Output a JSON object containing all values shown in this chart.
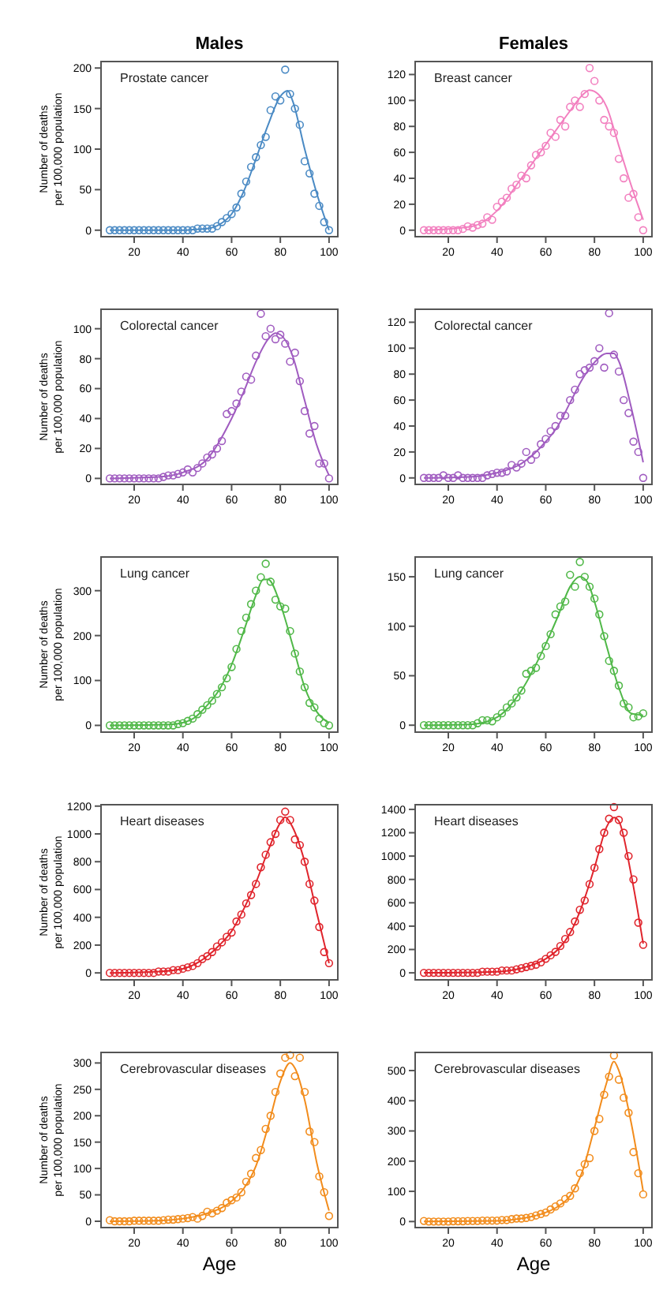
{
  "chart_data": [
    {
      "type": "scatter",
      "title": "Males",
      "subtitle": "Prostate cancer",
      "ylabel": "Number of deaths\nper 100,000 population",
      "xlim": [
        6.4,
        103.6
      ],
      "xticks": [
        20,
        40,
        60,
        80,
        100
      ],
      "ylim": [
        -8,
        208
      ],
      "yticks": [
        0,
        50,
        100,
        150,
        200
      ],
      "x": [
        10,
        12,
        14,
        16,
        18,
        20,
        22,
        24,
        26,
        28,
        30,
        32,
        34,
        36,
        38,
        40,
        42,
        44,
        46,
        48,
        50,
        52,
        54,
        56,
        58,
        60,
        62,
        64,
        66,
        68,
        70,
        72,
        74,
        76,
        78,
        80,
        82,
        84,
        86,
        88,
        90,
        92,
        94,
        96,
        98,
        100
      ],
      "series": [
        {
          "color": "#4a8ac4",
          "marker": "circle",
          "values": [
            0,
            0,
            0,
            0,
            0,
            0,
            0,
            0,
            0,
            0,
            0,
            0,
            0,
            0,
            0,
            0,
            0,
            0,
            2,
            2,
            2,
            2,
            5,
            10,
            15,
            20,
            28,
            45,
            60,
            78,
            90,
            105,
            115,
            148,
            165,
            160,
            198,
            168,
            150,
            130,
            85,
            70,
            45,
            30,
            10,
            0
          ]
        },
        {
          "type": "line",
          "marker": "none",
          "color": "#4a8ac4",
          "x": [
            10,
            20,
            30,
            40,
            45,
            50,
            55,
            60,
            65,
            70,
            75,
            80,
            83,
            85,
            90,
            95,
            100
          ],
          "values": [
            0,
            0,
            0,
            0,
            1,
            2,
            7,
            20,
            48,
            88,
            130,
            165,
            172,
            160,
            100,
            45,
            0
          ]
        }
      ]
    },
    {
      "type": "scatter",
      "title": "Females",
      "subtitle": "Breast cancer",
      "xlim": [
        6.4,
        103.6
      ],
      "xticks": [
        20,
        40,
        60,
        80,
        100
      ],
      "ylim": [
        -5,
        130
      ],
      "yticks": [
        0,
        20,
        40,
        60,
        80,
        100,
        120
      ],
      "x": [
        10,
        12,
        14,
        16,
        18,
        20,
        22,
        24,
        26,
        28,
        30,
        32,
        34,
        36,
        38,
        40,
        42,
        44,
        46,
        48,
        50,
        52,
        54,
        56,
        58,
        60,
        62,
        64,
        66,
        68,
        70,
        72,
        74,
        76,
        78,
        80,
        82,
        84,
        86,
        88,
        90,
        92,
        94,
        96,
        98,
        100
      ],
      "series": [
        {
          "color": "#f27fbf",
          "marker": "circle",
          "values": [
            0,
            0,
            0,
            0,
            0,
            0,
            0,
            0,
            1,
            3,
            2,
            4,
            5,
            10,
            8,
            18,
            22,
            25,
            32,
            35,
            42,
            40,
            50,
            58,
            60,
            65,
            75,
            72,
            85,
            80,
            95,
            100,
            95,
            105,
            125,
            115,
            100,
            85,
            80,
            75,
            55,
            40,
            25,
            28,
            10,
            0
          ]
        },
        {
          "type": "line",
          "marker": "none",
          "color": "#f27fbf",
          "x": [
            10,
            20,
            30,
            40,
            50,
            60,
            70,
            75,
            78,
            80,
            85,
            90,
            95,
            100
          ],
          "values": [
            0,
            1,
            3,
            15,
            40,
            66,
            92,
            104,
            108,
            107,
            95,
            65,
            35,
            8
          ]
        }
      ]
    },
    {
      "type": "scatter",
      "subtitle": "Colorectal cancer",
      "ylabel": "Number of deaths\nper 100,000 population",
      "xlim": [
        6.4,
        103.6
      ],
      "xticks": [
        20,
        40,
        60,
        80,
        100
      ],
      "ylim": [
        -4,
        113
      ],
      "yticks": [
        0,
        20,
        40,
        60,
        80,
        100
      ],
      "x": [
        10,
        12,
        14,
        16,
        18,
        20,
        22,
        24,
        26,
        28,
        30,
        32,
        34,
        36,
        38,
        40,
        42,
        44,
        46,
        48,
        50,
        52,
        54,
        56,
        58,
        60,
        62,
        64,
        66,
        68,
        70,
        72,
        74,
        76,
        78,
        80,
        82,
        84,
        86,
        88,
        90,
        92,
        94,
        96,
        98,
        100
      ],
      "series": [
        {
          "color": "#a05cc0",
          "marker": "circle",
          "values": [
            0,
            0,
            0,
            0,
            0,
            0,
            0,
            0,
            0,
            0,
            0,
            1,
            2,
            2,
            3,
            4,
            6,
            4,
            7,
            10,
            14,
            16,
            20,
            25,
            43,
            45,
            50,
            58,
            68,
            66,
            82,
            110,
            95,
            100,
            93,
            96,
            90,
            78,
            84,
            65,
            45,
            30,
            35,
            10,
            10,
            0
          ]
        },
        {
          "type": "line",
          "marker": "none",
          "color": "#a05cc0",
          "x": [
            10,
            30,
            40,
            50,
            60,
            65,
            70,
            75,
            78,
            80,
            85,
            90,
            95,
            100
          ],
          "values": [
            0,
            1,
            4,
            13,
            40,
            58,
            78,
            93,
            97,
            96,
            82,
            52,
            22,
            2
          ]
        }
      ]
    },
    {
      "type": "scatter",
      "subtitle": "Colorectal cancer",
      "xlim": [
        6.4,
        103.6
      ],
      "xticks": [
        20,
        40,
        60,
        80,
        100
      ],
      "ylim": [
        -5,
        130
      ],
      "yticks": [
        0,
        20,
        40,
        60,
        80,
        100,
        120
      ],
      "x": [
        10,
        12,
        14,
        16,
        18,
        20,
        22,
        24,
        26,
        28,
        30,
        32,
        34,
        36,
        38,
        40,
        42,
        44,
        46,
        48,
        50,
        52,
        54,
        56,
        58,
        60,
        62,
        64,
        66,
        68,
        70,
        72,
        74,
        76,
        78,
        80,
        82,
        84,
        86,
        88,
        90,
        92,
        94,
        96,
        98,
        100
      ],
      "series": [
        {
          "color": "#a05cc0",
          "marker": "circle",
          "values": [
            0,
            0,
            0,
            0,
            2,
            0,
            0,
            2,
            0,
            0,
            0,
            0,
            0,
            2,
            3,
            4,
            4,
            5,
            10,
            8,
            11,
            20,
            14,
            18,
            26,
            30,
            36,
            40,
            48,
            48,
            60,
            68,
            80,
            83,
            85,
            90,
            100,
            85,
            127,
            95,
            82,
            60,
            50,
            28,
            20,
            0
          ]
        },
        {
          "type": "line",
          "marker": "none",
          "color": "#a05cc0",
          "x": [
            10,
            30,
            40,
            50,
            60,
            65,
            70,
            75,
            80,
            85,
            88,
            90,
            95,
            100
          ],
          "values": [
            0,
            1,
            4,
            11,
            28,
            40,
            58,
            76,
            89,
            96,
            96,
            90,
            55,
            12
          ]
        }
      ]
    },
    {
      "type": "scatter",
      "subtitle": "Lung cancer",
      "ylabel": "Number of deaths\nper 100,000 population",
      "xlim": [
        6.4,
        103.6
      ],
      "xticks": [
        20,
        40,
        60,
        80,
        100
      ],
      "ylim": [
        -15,
        375
      ],
      "yticks": [
        0,
        100,
        200,
        300
      ],
      "x": [
        10,
        12,
        14,
        16,
        18,
        20,
        22,
        24,
        26,
        28,
        30,
        32,
        34,
        36,
        38,
        40,
        42,
        44,
        46,
        48,
        50,
        52,
        54,
        56,
        58,
        60,
        62,
        64,
        66,
        68,
        70,
        72,
        74,
        76,
        78,
        80,
        82,
        84,
        86,
        88,
        90,
        92,
        94,
        96,
        98,
        100
      ],
      "series": [
        {
          "color": "#50b848",
          "marker": "circle",
          "values": [
            0,
            0,
            0,
            0,
            0,
            0,
            0,
            0,
            0,
            0,
            0,
            0,
            0,
            0,
            3,
            5,
            10,
            15,
            25,
            35,
            45,
            55,
            70,
            85,
            105,
            130,
            170,
            210,
            240,
            270,
            300,
            330,
            360,
            320,
            280,
            265,
            260,
            210,
            160,
            120,
            85,
            50,
            40,
            15,
            5,
            0
          ]
        },
        {
          "type": "line",
          "marker": "none",
          "color": "#50b848",
          "x": [
            10,
            35,
            40,
            45,
            50,
            55,
            60,
            65,
            70,
            73,
            75,
            80,
            85,
            90,
            95,
            100
          ],
          "values": [
            0,
            2,
            6,
            18,
            45,
            80,
            135,
            210,
            290,
            325,
            325,
            270,
            180,
            85,
            30,
            5
          ]
        }
      ]
    },
    {
      "type": "scatter",
      "subtitle": "Lung cancer",
      "xlim": [
        6.4,
        103.6
      ],
      "xticks": [
        20,
        40,
        60,
        80,
        100
      ],
      "ylim": [
        -7,
        170
      ],
      "yticks": [
        0,
        50,
        100,
        150
      ],
      "x": [
        10,
        12,
        14,
        16,
        18,
        20,
        22,
        24,
        26,
        28,
        30,
        32,
        34,
        36,
        38,
        40,
        42,
        44,
        46,
        48,
        50,
        52,
        54,
        56,
        58,
        60,
        62,
        64,
        66,
        68,
        70,
        72,
        74,
        76,
        78,
        80,
        82,
        84,
        86,
        88,
        90,
        92,
        94,
        96,
        98,
        100
      ],
      "series": [
        {
          "color": "#50b848",
          "marker": "circle",
          "values": [
            0,
            0,
            0,
            0,
            0,
            0,
            0,
            0,
            0,
            0,
            0,
            2,
            5,
            5,
            4,
            8,
            12,
            18,
            22,
            28,
            35,
            52,
            55,
            58,
            70,
            80,
            92,
            112,
            120,
            125,
            152,
            140,
            165,
            150,
            140,
            128,
            112,
            90,
            65,
            55,
            40,
            22,
            18,
            8,
            9,
            12
          ]
        },
        {
          "type": "line",
          "marker": "none",
          "color": "#50b848",
          "x": [
            10,
            30,
            40,
            50,
            60,
            65,
            70,
            74,
            77,
            80,
            85,
            90,
            95,
            100
          ],
          "values": [
            0,
            1,
            8,
            35,
            82,
            110,
            140,
            150,
            145,
            125,
            80,
            38,
            12,
            10
          ]
        }
      ]
    },
    {
      "type": "scatter",
      "subtitle": "Heart diseases",
      "ylabel": "Number of deaths\nper 100,000 population",
      "xlim": [
        6.4,
        103.6
      ],
      "xticks": [
        20,
        40,
        60,
        80,
        100
      ],
      "ylim": [
        -50,
        1210
      ],
      "yticks": [
        0,
        200,
        400,
        600,
        800,
        1000,
        1200
      ],
      "x": [
        10,
        12,
        14,
        16,
        18,
        20,
        22,
        24,
        26,
        28,
        30,
        32,
        34,
        36,
        38,
        40,
        42,
        44,
        46,
        48,
        50,
        52,
        54,
        56,
        58,
        60,
        62,
        64,
        66,
        68,
        70,
        72,
        74,
        76,
        78,
        80,
        82,
        84,
        86,
        88,
        90,
        92,
        94,
        96,
        98,
        100
      ],
      "series": [
        {
          "color": "#e0242c",
          "marker": "circle",
          "values": [
            0,
            0,
            0,
            0,
            0,
            0,
            0,
            0,
            0,
            0,
            10,
            10,
            10,
            20,
            20,
            30,
            40,
            50,
            70,
            100,
            120,
            150,
            190,
            220,
            260,
            290,
            370,
            420,
            500,
            560,
            640,
            760,
            850,
            940,
            1000,
            1100,
            1160,
            1100,
            960,
            920,
            800,
            640,
            520,
            330,
            150,
            70
          ]
        },
        {
          "type": "line",
          "marker": "none",
          "color": "#e0242c",
          "x": [
            10,
            30,
            40,
            50,
            55,
            60,
            65,
            70,
            75,
            80,
            82,
            85,
            90,
            95,
            100
          ],
          "values": [
            0,
            10,
            30,
            120,
            200,
            300,
            460,
            650,
            880,
            1080,
            1120,
            1050,
            800,
            430,
            70
          ]
        }
      ]
    },
    {
      "type": "scatter",
      "subtitle": "Heart diseases",
      "xlim": [
        6.4,
        103.6
      ],
      "xticks": [
        20,
        40,
        60,
        80,
        100
      ],
      "ylim": [
        -60,
        1440
      ],
      "yticks": [
        0,
        200,
        400,
        600,
        800,
        1000,
        1200,
        1400
      ],
      "x": [
        10,
        12,
        14,
        16,
        18,
        20,
        22,
        24,
        26,
        28,
        30,
        32,
        34,
        36,
        38,
        40,
        42,
        44,
        46,
        48,
        50,
        52,
        54,
        56,
        58,
        60,
        62,
        64,
        66,
        68,
        70,
        72,
        74,
        76,
        78,
        80,
        82,
        84,
        86,
        88,
        90,
        92,
        94,
        96,
        98,
        100
      ],
      "series": [
        {
          "color": "#e0242c",
          "marker": "circle",
          "values": [
            0,
            0,
            0,
            0,
            0,
            0,
            0,
            0,
            0,
            0,
            0,
            0,
            10,
            10,
            10,
            10,
            20,
            20,
            20,
            30,
            40,
            50,
            60,
            70,
            90,
            120,
            150,
            180,
            230,
            290,
            350,
            440,
            540,
            620,
            760,
            900,
            1060,
            1200,
            1320,
            1420,
            1310,
            1200,
            1000,
            800,
            430,
            240
          ]
        },
        {
          "type": "line",
          "marker": "none",
          "color": "#e0242c",
          "x": [
            10,
            40,
            50,
            60,
            65,
            70,
            75,
            80,
            85,
            88,
            90,
            95,
            100
          ],
          "values": [
            0,
            10,
            40,
            120,
            200,
            340,
            580,
            900,
            1250,
            1330,
            1300,
            850,
            250
          ]
        }
      ]
    },
    {
      "type": "scatter",
      "subtitle": "Cerebrovascular diseases",
      "ylabel": "Number of deaths\nper 100,000 population",
      "xlabel": "Age",
      "xlim": [
        6.4,
        103.6
      ],
      "xticks": [
        20,
        40,
        60,
        80,
        100
      ],
      "ylim": [
        -12,
        320
      ],
      "yticks": [
        0,
        50,
        100,
        150,
        200,
        250,
        300
      ],
      "x": [
        10,
        12,
        14,
        16,
        18,
        20,
        22,
        24,
        26,
        28,
        30,
        32,
        34,
        36,
        38,
        40,
        42,
        44,
        46,
        48,
        50,
        52,
        54,
        56,
        58,
        60,
        62,
        64,
        66,
        68,
        70,
        72,
        74,
        76,
        78,
        80,
        82,
        84,
        86,
        88,
        90,
        92,
        94,
        96,
        98,
        100
      ],
      "series": [
        {
          "color": "#f28c1c",
          "marker": "circle",
          "values": [
            2,
            0,
            0,
            0,
            0,
            1,
            1,
            1,
            1,
            1,
            1,
            2,
            3,
            3,
            4,
            5,
            6,
            8,
            5,
            10,
            18,
            15,
            20,
            25,
            35,
            40,
            45,
            55,
            75,
            90,
            120,
            135,
            175,
            200,
            245,
            280,
            310,
            315,
            275,
            310,
            245,
            170,
            150,
            85,
            55,
            10
          ]
        },
        {
          "type": "line",
          "marker": "none",
          "color": "#f28c1c",
          "x": [
            10,
            30,
            40,
            50,
            60,
            65,
            70,
            75,
            80,
            84,
            86,
            90,
            95,
            100
          ],
          "values": [
            0,
            1,
            5,
            15,
            38,
            62,
            105,
            180,
            265,
            300,
            290,
            230,
            110,
            20
          ]
        }
      ]
    },
    {
      "type": "scatter",
      "subtitle": "Cerebrovascular diseases",
      "xlabel": "Age",
      "xlim": [
        6.4,
        103.6
      ],
      "xticks": [
        20,
        40,
        60,
        80,
        100
      ],
      "ylim": [
        -20,
        560
      ],
      "yticks": [
        0,
        100,
        200,
        300,
        400,
        500
      ],
      "x": [
        10,
        12,
        14,
        16,
        18,
        20,
        22,
        24,
        26,
        28,
        30,
        32,
        34,
        36,
        38,
        40,
        42,
        44,
        46,
        48,
        50,
        52,
        54,
        56,
        58,
        60,
        62,
        64,
        66,
        68,
        70,
        72,
        74,
        76,
        78,
        80,
        82,
        84,
        86,
        88,
        90,
        92,
        94,
        96,
        98,
        100
      ],
      "series": [
        {
          "color": "#f28c1c",
          "marker": "circle",
          "values": [
            2,
            0,
            0,
            0,
            0,
            0,
            1,
            1,
            1,
            2,
            2,
            2,
            3,
            3,
            3,
            3,
            5,
            5,
            8,
            10,
            10,
            12,
            15,
            20,
            25,
            30,
            40,
            50,
            60,
            75,
            85,
            110,
            160,
            190,
            210,
            300,
            340,
            420,
            480,
            550,
            470,
            410,
            360,
            230,
            160,
            90
          ]
        },
        {
          "type": "line",
          "marker": "none",
          "color": "#f28c1c",
          "x": [
            10,
            40,
            50,
            60,
            65,
            70,
            75,
            80,
            85,
            88,
            90,
            95,
            100
          ],
          "values": [
            0,
            2,
            10,
            30,
            50,
            85,
            165,
            310,
            460,
            530,
            500,
            330,
            100
          ]
        }
      ]
    }
  ]
}
